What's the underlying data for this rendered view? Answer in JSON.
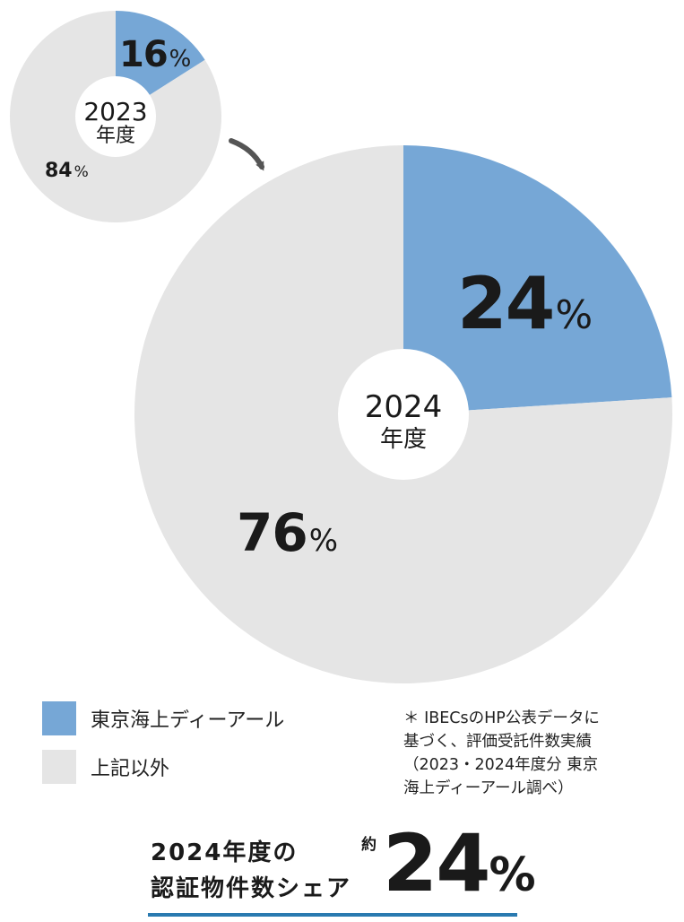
{
  "chart_data": [
    {
      "type": "pie",
      "center_label": [
        "2023",
        "年度"
      ],
      "slices": [
        {
          "label": "東京海上ディーアール",
          "value": 16,
          "display": "16",
          "unit": "%",
          "color": "#76a7d6"
        },
        {
          "label": "上記以外",
          "value": 84,
          "display": "84",
          "unit": "%",
          "color": "#e5e5e5"
        }
      ]
    },
    {
      "type": "pie",
      "center_label": [
        "2024",
        "年度"
      ],
      "slices": [
        {
          "label": "東京海上ディーアール",
          "value": 24,
          "display": "24",
          "unit": "%",
          "color": "#76a7d6"
        },
        {
          "label": "上記以外",
          "value": 76,
          "display": "76",
          "unit": "%",
          "color": "#e5e5e5"
        }
      ]
    }
  ],
  "legend": [
    {
      "label": "東京海上ディーアール",
      "color": "#76a7d6"
    },
    {
      "label": "上記以外",
      "color": "#e5e5e5"
    }
  ],
  "note": "＊ IBECsのHP公表データに\n基づく、評価受託件数実績\n（2023・2024年度分 東京\n海上ディーアール調べ）",
  "summary": {
    "line1": "2024年度の",
    "line2": "認証物件数シェア",
    "prefix": "約",
    "value": "24",
    "unit": "%",
    "underline_color": "#2a7ab0"
  },
  "arrow_icon": "curved-arrow-icon"
}
